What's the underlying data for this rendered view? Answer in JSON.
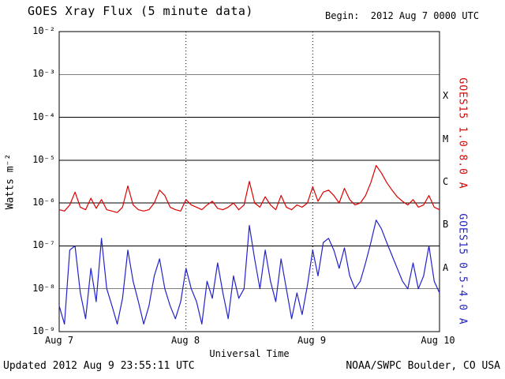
{
  "labels": {
    "begin": "Begin:  2012 Aug 7 0000 UTC",
    "updated": "Updated 2012 Aug 9 23:55:11 UTC",
    "credit": "NOAA/SWPC Boulder, CO USA"
  },
  "chart_data": {
    "type": "line",
    "title": "GOES Xray Flux (5 minute data)",
    "xlabel": "Universal Time",
    "ylabel": "Watts m⁻²",
    "y_scale": "log",
    "ylim": [
      1e-09,
      0.01
    ],
    "x_span_hours": 72,
    "x_tick_labels": [
      "Aug 7",
      "Aug 8",
      "Aug 9",
      "Aug 10"
    ],
    "y_tick_labels": [
      "10⁻²",
      "10⁻³",
      "10⁻⁴",
      "10⁻⁵",
      "10⁻⁶",
      "10⁻⁷",
      "10⁻⁸",
      "10⁻⁹"
    ],
    "flare_class_labels": [
      "X",
      "M",
      "C",
      "B",
      "A"
    ],
    "grid": {
      "horizontal_lines_at_decades": true,
      "vertical_dotted_at_day_boundaries": true
    },
    "series": [
      {
        "name": "GOES15 1.0-8.0 A",
        "color": "#dd0000",
        "values": [
          7e-07,
          6.5e-07,
          9e-07,
          1.8e-06,
          8e-07,
          7e-07,
          1.3e-06,
          7.5e-07,
          1.2e-06,
          7e-07,
          6.5e-07,
          6e-07,
          8e-07,
          2.5e-06,
          9e-07,
          7e-07,
          6.5e-07,
          7e-07,
          1e-06,
          2e-06,
          1.5e-06,
          8e-07,
          7e-07,
          6.5e-07,
          1.2e-06,
          9e-07,
          8e-07,
          7e-07,
          9e-07,
          1.1e-06,
          7.5e-07,
          7e-07,
          8e-07,
          1e-06,
          7e-07,
          9e-07,
          3.2e-06,
          1e-06,
          8e-07,
          1.4e-06,
          9e-07,
          7e-07,
          1.5e-06,
          8e-07,
          7e-07,
          9e-07,
          8e-07,
          1e-06,
          2.4e-06,
          1.1e-06,
          1.8e-06,
          2e-06,
          1.5e-06,
          1e-06,
          2.2e-06,
          1.2e-06,
          9e-07,
          1e-06,
          1.5e-06,
          3e-06,
          7.5e-06,
          5e-06,
          3e-06,
          2e-06,
          1.4e-06,
          1.1e-06,
          9e-07,
          1.2e-06,
          8e-07,
          9e-07,
          1.5e-06,
          8e-07,
          7e-07
        ]
      },
      {
        "name": "GOES15 0.5-4.0 A",
        "color": "#2222cc",
        "values": [
          4e-09,
          1.5e-09,
          8e-08,
          1e-07,
          8e-09,
          2e-09,
          3e-08,
          5e-09,
          1.5e-07,
          1e-08,
          4e-09,
          1.5e-09,
          6e-09,
          8e-08,
          1.5e-08,
          5e-09,
          1.5e-09,
          4e-09,
          2e-08,
          5e-08,
          1e-08,
          4e-09,
          2e-09,
          5e-09,
          3e-08,
          1e-08,
          5e-09,
          1.5e-09,
          1.5e-08,
          6e-09,
          4e-08,
          8e-09,
          2e-09,
          2e-08,
          6e-09,
          1e-08,
          3e-07,
          5e-08,
          1e-08,
          8e-08,
          1.5e-08,
          5e-09,
          5e-08,
          1e-08,
          2e-09,
          8e-09,
          2.5e-09,
          1.2e-08,
          8e-08,
          2e-08,
          1.2e-07,
          1.5e-07,
          8e-08,
          3e-08,
          9e-08,
          2e-08,
          1e-08,
          1.5e-08,
          4e-08,
          1.2e-07,
          4e-07,
          2.5e-07,
          1.2e-07,
          6e-08,
          3e-08,
          1.5e-08,
          1e-08,
          4e-08,
          1e-08,
          2e-08,
          1e-07,
          1.5e-08,
          8e-09
        ]
      }
    ]
  }
}
